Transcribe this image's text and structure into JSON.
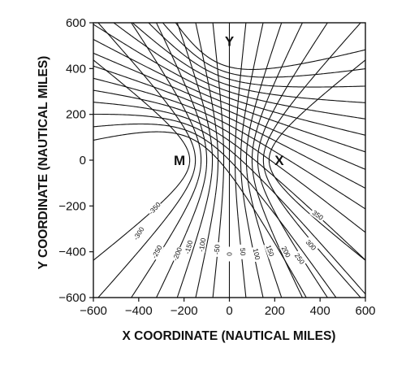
{
  "chart_data": {
    "type": "contour",
    "xlabel": "X COORDINATE (NAUTICAL MILES)",
    "ylabel": "Y COORDINATE (NAUTICAL MILES)",
    "xlim": [
      -600,
      600
    ],
    "ylim": [
      -600,
      600
    ],
    "x_ticks": [
      "-600",
      "-400",
      "-200",
      "0",
      "200",
      "400",
      "600"
    ],
    "y_ticks": [
      "600",
      "400",
      "200",
      "0",
      "-200",
      "-400",
      "-600"
    ],
    "stations": [
      {
        "name": "M",
        "x": -220,
        "y": 0
      },
      {
        "name": "X",
        "x": 220,
        "y": 0
      },
      {
        "name": "Y",
        "x": 0,
        "y": 520
      }
    ],
    "contour_labels": [
      "-350",
      "-300",
      "-250",
      "-200",
      "-150",
      "-100",
      "-50",
      "0",
      "50",
      "100",
      "150",
      "200",
      "250",
      "300",
      "350"
    ],
    "contour_values": [
      -350,
      -300,
      -250,
      -200,
      -150,
      -100,
      -50,
      0,
      50,
      100,
      150,
      200,
      250,
      300,
      350
    ],
    "grid": false
  }
}
